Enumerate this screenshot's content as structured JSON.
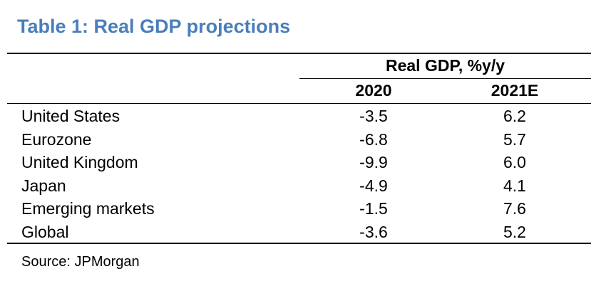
{
  "title": "Table 1: Real GDP projections",
  "table": {
    "group_header": "Real GDP, %y/y",
    "columns": [
      "2020",
      "2021E"
    ],
    "rows": [
      {
        "label": "United States",
        "v2020": "-3.5",
        "v2021": "6.2"
      },
      {
        "label": "Eurozone",
        "v2020": "-6.8",
        "v2021": "5.7"
      },
      {
        "label": "United Kingdom",
        "v2020": "-9.9",
        "v2021": "6.0"
      },
      {
        "label": "Japan",
        "v2020": "-4.9",
        "v2021": "4.1"
      },
      {
        "label": "Emerging markets",
        "v2020": "-1.5",
        "v2021": "7.6"
      },
      {
        "label": "Global",
        "v2020": "-3.6",
        "v2021": "5.2"
      }
    ]
  },
  "source": "Source: JPMorgan",
  "colors": {
    "title": "#4a7ebb",
    "rules": "#000000"
  }
}
